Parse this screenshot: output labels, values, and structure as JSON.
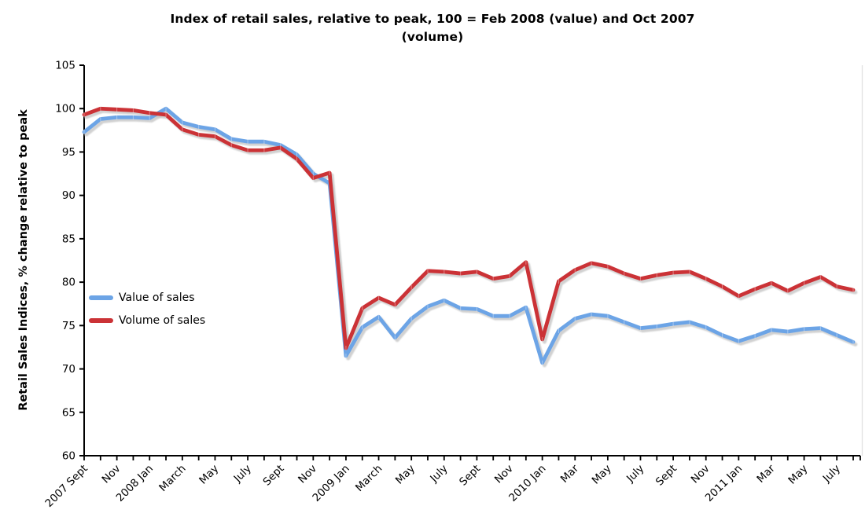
{
  "title": {
    "line1": "Index of retail sales, relative to peak, 100 = Feb 2008 (value) and Oct 2007",
    "line2": "(volume)"
  },
  "y_axis": {
    "label": "Retail Sales Indices, % change relative to peak",
    "ticks": [
      60,
      65,
      70,
      75,
      80,
      85,
      90,
      95,
      100,
      105
    ]
  },
  "x_axis": {
    "tick_labels": [
      "2007 Sept",
      "Nov",
      "2008 Jan",
      "March",
      "May",
      "July",
      "Sept",
      "Nov",
      "2009 Jan",
      "March",
      "May",
      "July",
      "Sept",
      "Nov",
      "2010 Jan",
      "Mar",
      "May",
      "July",
      "Sept",
      "Nov",
      "2011 Jan",
      "Mar",
      "May",
      "July"
    ],
    "label_every_n_months": 2
  },
  "chart_data": {
    "type": "line",
    "title": "Index of retail sales, relative to peak, 100 = Feb 2008 (value) and Oct 2007 (volume)",
    "ylabel": "Retail Sales Indices, % change relative to peak",
    "ylim": [
      60,
      105
    ],
    "grid": false,
    "legend_position": "inside-left-middle",
    "x": [
      "2007 Sep",
      "2007 Oct",
      "2007 Nov",
      "2007 Dec",
      "2008 Jan",
      "2008 Feb",
      "2008 Mar",
      "2008 Apr",
      "2008 May",
      "2008 Jun",
      "2008 Jul",
      "2008 Aug",
      "2008 Sep",
      "2008 Oct",
      "2008 Nov",
      "2008 Dec",
      "2009 Jan",
      "2009 Feb",
      "2009 Mar",
      "2009 Apr",
      "2009 May",
      "2009 Jun",
      "2009 Jul",
      "2009 Aug",
      "2009 Sep",
      "2009 Oct",
      "2009 Nov",
      "2009 Dec",
      "2010 Jan",
      "2010 Feb",
      "2010 Mar",
      "2010 Apr",
      "2010 May",
      "2010 Jun",
      "2010 Jul",
      "2010 Aug",
      "2010 Sep",
      "2010 Oct",
      "2010 Nov",
      "2010 Dec",
      "2011 Jan",
      "2011 Feb",
      "2011 Mar",
      "2011 Apr",
      "2011 May",
      "2011 Jun",
      "2011 Jul",
      "2011 Aug"
    ],
    "series": [
      {
        "name": "Value of sales",
        "color": "#6CA4E6",
        "values": [
          97.3,
          98.8,
          99.0,
          99.0,
          98.9,
          100.0,
          98.4,
          97.9,
          97.6,
          96.5,
          96.2,
          96.2,
          95.8,
          94.7,
          92.5,
          91.4,
          71.5,
          74.8,
          76.0,
          73.6,
          75.8,
          77.2,
          77.9,
          77.0,
          76.9,
          76.1,
          76.1,
          77.1,
          70.7,
          74.4,
          75.8,
          76.3,
          76.1,
          75.4,
          74.7,
          74.9,
          75.2,
          75.4,
          74.8,
          73.9,
          73.2,
          73.8,
          74.5,
          74.3,
          74.6,
          74.7,
          73.9,
          73.1
        ]
      },
      {
        "name": "Volume of sales",
        "color": "#CB3236",
        "values": [
          99.3,
          100.0,
          99.9,
          99.8,
          99.5,
          99.3,
          97.6,
          97.0,
          96.8,
          95.8,
          95.2,
          95.2,
          95.5,
          94.2,
          92.0,
          92.6,
          72.4,
          77.0,
          78.2,
          77.4,
          79.4,
          81.3,
          81.2,
          81.0,
          81.2,
          80.4,
          80.7,
          82.3,
          73.4,
          80.1,
          81.4,
          82.2,
          81.8,
          81.0,
          80.4,
          80.8,
          81.1,
          81.2,
          80.4,
          79.5,
          78.4,
          79.2,
          79.9,
          79.0,
          79.9,
          80.6,
          79.5,
          79.1
        ]
      }
    ],
    "style": {
      "shadow_color": "#c9c9c9",
      "axis_color": "#000000",
      "plot_right_border_color": "#e2e2e2"
    }
  }
}
